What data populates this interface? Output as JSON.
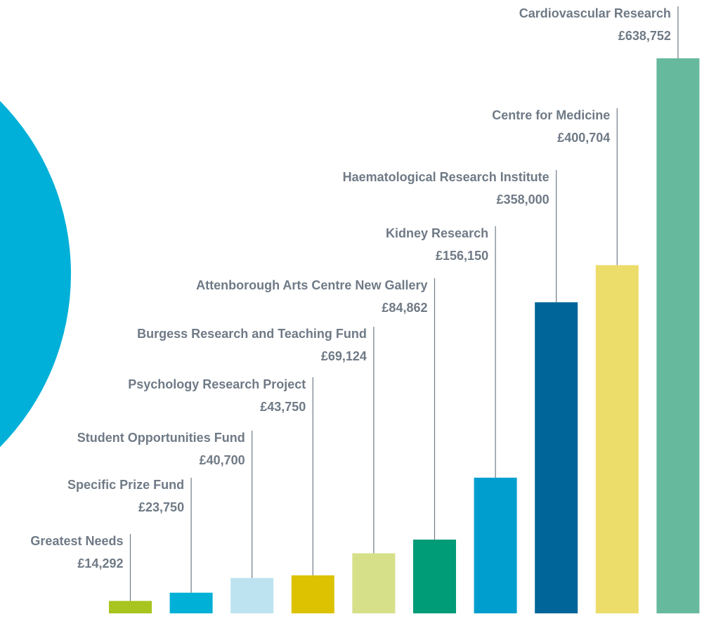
{
  "chart_data": {
    "type": "bar",
    "categories": [
      "Greatest Needs",
      "Specific Prize Fund",
      "Student Opportunities Fund",
      "Psychology Research Project",
      "Burgess Research and Teaching Fund",
      "Attenborough Arts Centre New Gallery",
      "Kidney Research",
      "Haematological Research Institute",
      "Centre for Medicine",
      "Cardiovascular Research"
    ],
    "values": [
      14292,
      23750,
      40700,
      43750,
      69124,
      84862,
      156150,
      358000,
      400704,
      638752
    ],
    "value_labels": [
      "£14,292",
      "£23,750",
      "£40,700",
      "£43,750",
      "£69,124",
      "£84,862",
      "£156,150",
      "£358,000",
      "£400,704",
      "£638,752"
    ],
    "colors": [
      "#a8c41e",
      "#00b0d6",
      "#bde3f1",
      "#dcc200",
      "#d6e088",
      "#009b77",
      "#009dcf",
      "#006598",
      "#ecdc6a",
      "#66b99d"
    ]
  }
}
